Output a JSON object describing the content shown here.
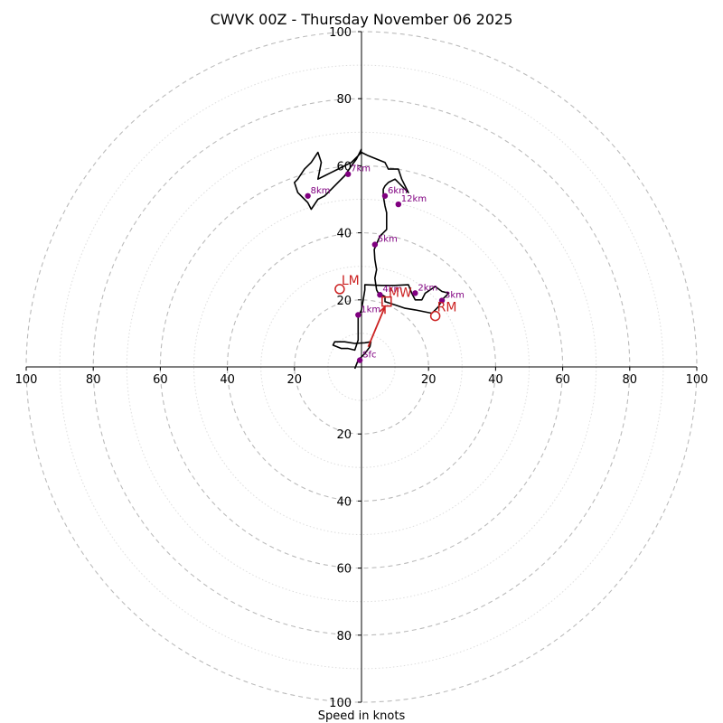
{
  "chart_data": {
    "type": "hodograph",
    "title": "CWVK 00Z - Thursday November 06 2025",
    "xlabel": "Speed in knots",
    "range": [
      -100,
      100
    ],
    "ring_step": 20,
    "minor_ring_step": 10,
    "tick_labels": [
      "100",
      "80",
      "60",
      "40",
      "20",
      "20",
      "40",
      "60",
      "80",
      "100"
    ],
    "x_ticks": [
      -100,
      -80,
      -60,
      -40,
      -20,
      20,
      40,
      60,
      80,
      100
    ],
    "y_tick_labels_top": [
      "100",
      "80",
      "60",
      "40",
      "20"
    ],
    "y_tick_labels_bottom": [
      "20",
      "40",
      "60",
      "80",
      "100"
    ],
    "y_ticks": [
      100,
      80,
      60,
      40,
      20,
      -20,
      -40,
      -60,
      -80,
      -100
    ],
    "colors": {
      "trace": "#000000",
      "height_marker": "#800080",
      "motion": "#cc2222",
      "major_ring": "#bbbbbb",
      "minor_ring": "#dddddd"
    },
    "trace": [
      [
        -2,
        -0.5
      ],
      [
        -1,
        2
      ],
      [
        1,
        4
      ],
      [
        2.5,
        6
      ],
      [
        2.8,
        7.5
      ],
      [
        1,
        7.2
      ],
      [
        -2,
        7
      ],
      [
        -5,
        7.5
      ],
      [
        -8,
        7.5
      ],
      [
        -8.5,
        6.5
      ],
      [
        -6,
        5.5
      ],
      [
        -4,
        5.5
      ],
      [
        -2,
        5
      ],
      [
        -1,
        8
      ],
      [
        -1,
        12
      ],
      [
        -1,
        15
      ],
      [
        0,
        17
      ],
      [
        0.5,
        20
      ],
      [
        1,
        23
      ],
      [
        1,
        24.5
      ],
      [
        6,
        24.3
      ],
      [
        10,
        24.3
      ],
      [
        14,
        24.5
      ],
      [
        15,
        22
      ],
      [
        16,
        20
      ],
      [
        18,
        20
      ],
      [
        19,
        22
      ],
      [
        22,
        24
      ],
      [
        24,
        22.5
      ],
      [
        26,
        22
      ],
      [
        24,
        20
      ],
      [
        23,
        18
      ],
      [
        22,
        17
      ],
      [
        21,
        16
      ],
      [
        16,
        17
      ],
      [
        13,
        17.5
      ],
      [
        10,
        18.5
      ],
      [
        7,
        19.5
      ],
      [
        7,
        21
      ],
      [
        5,
        22
      ],
      [
        4.5,
        23
      ],
      [
        4,
        26.5
      ],
      [
        4.5,
        29
      ],
      [
        4,
        32
      ],
      [
        3.8,
        35
      ],
      [
        5.5,
        39
      ],
      [
        7.5,
        41
      ],
      [
        7.5,
        43
      ],
      [
        7.5,
        46
      ],
      [
        7,
        48
      ],
      [
        6.5,
        51
      ],
      [
        6.5,
        53
      ],
      [
        7,
        54
      ],
      [
        8,
        55
      ],
      [
        10,
        56
      ],
      [
        12,
        54
      ],
      [
        14,
        52
      ],
      [
        12,
        56
      ],
      [
        11,
        59
      ],
      [
        8,
        59
      ],
      [
        7,
        61
      ],
      [
        4.5,
        62
      ],
      [
        2,
        63
      ],
      [
        0,
        64
      ],
      [
        -1,
        63
      ],
      [
        -3,
        61
      ],
      [
        -5,
        60
      ],
      [
        -7,
        59
      ],
      [
        -9,
        58
      ],
      [
        -11,
        57
      ],
      [
        -13,
        56
      ],
      [
        -12,
        61
      ],
      [
        -13,
        64
      ],
      [
        -15,
        61
      ],
      [
        -17,
        59
      ],
      [
        -19,
        56
      ],
      [
        -20,
        55
      ],
      [
        -19,
        52
      ],
      [
        -17,
        50
      ],
      [
        -16,
        49
      ],
      [
        -15,
        47
      ],
      [
        -13,
        50
      ],
      [
        -11,
        51
      ],
      [
        -9,
        53
      ],
      [
        -7,
        55
      ],
      [
        -5,
        57
      ],
      [
        -3,
        60
      ],
      [
        -1.5,
        62
      ],
      [
        0,
        65
      ]
    ],
    "height_markers": [
      {
        "label": "Sfc",
        "u": -0.5,
        "v": 2
      },
      {
        "label": "1km",
        "u": -1,
        "v": 15.5
      },
      {
        "label": "2km",
        "u": 16,
        "v": 22
      },
      {
        "label": "3km",
        "u": 24,
        "v": 19.8
      },
      {
        "label": "4km",
        "u": 5.5,
        "v": 21.5
      },
      {
        "label": "5km",
        "u": 4,
        "v": 36.5
      },
      {
        "label": "6km",
        "u": 7,
        "v": 51
      },
      {
        "label": "7km",
        "u": -4,
        "v": 57.5
      },
      {
        "label": "8km",
        "u": -16,
        "v": 51
      },
      {
        "label": "12km",
        "u": 11,
        "v": 48.5
      }
    ],
    "storm_motion": [
      {
        "label": "LM",
        "u": -6.5,
        "v": 23.2,
        "shape": "circle"
      },
      {
        "label": "MW",
        "u": 7.5,
        "v": 19.5,
        "shape": "square"
      },
      {
        "label": "RM",
        "u": 22,
        "v": 15.2,
        "shape": "circle"
      }
    ],
    "shear_vector": {
      "from": [
        2,
        6
      ],
      "to": [
        7,
        18
      ]
    }
  }
}
